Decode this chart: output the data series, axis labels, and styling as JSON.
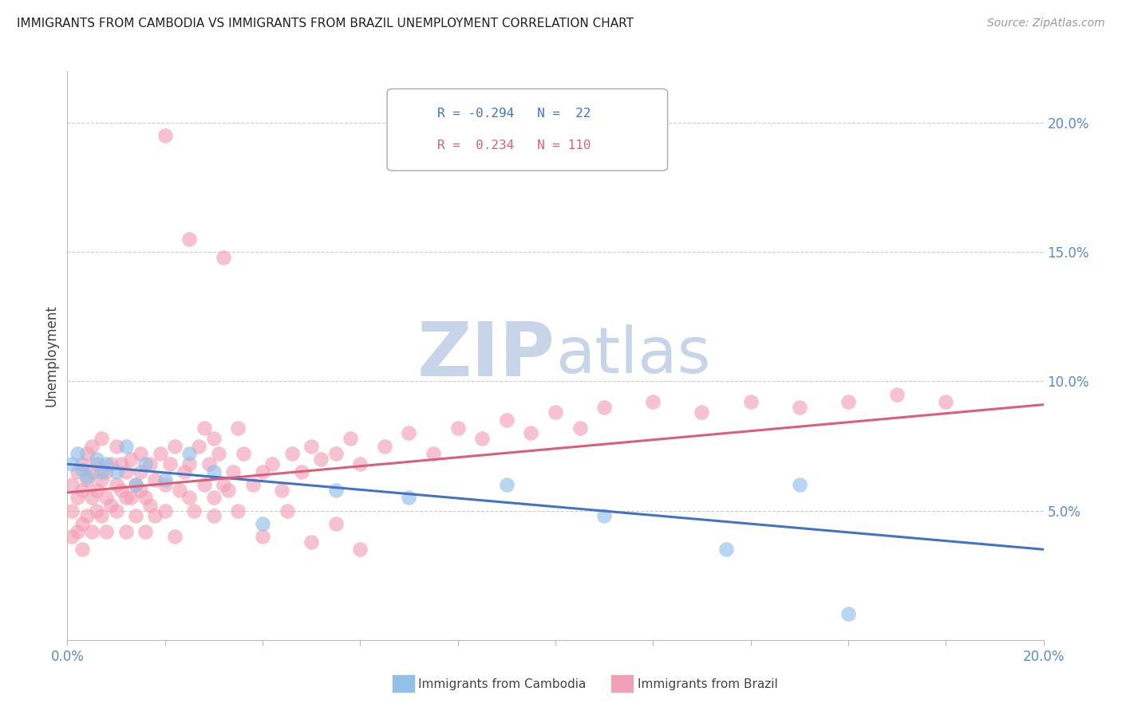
{
  "title": "IMMIGRANTS FROM CAMBODIA VS IMMIGRANTS FROM BRAZIL UNEMPLOYMENT CORRELATION CHART",
  "source": "Source: ZipAtlas.com",
  "ylabel": "Unemployment",
  "r_cambodia": -0.294,
  "n_cambodia": 22,
  "r_brazil": 0.234,
  "n_brazil": 110,
  "color_cambodia": "#92C0E8",
  "color_brazil": "#F2A0B8",
  "line_color_cambodia": "#4472C4",
  "line_color_brazil": "#D9607A",
  "watermark_color": "#C8D5E8",
  "xlim": [
    0.0,
    0.2
  ],
  "ylim": [
    0.0,
    0.22
  ],
  "cam_x": [
    0.001,
    0.002,
    0.003,
    0.004,
    0.006,
    0.007,
    0.008,
    0.01,
    0.012,
    0.014,
    0.016,
    0.02,
    0.025,
    0.03,
    0.04,
    0.055,
    0.07,
    0.09,
    0.11,
    0.135,
    0.15,
    0.16
  ],
  "cam_y": [
    0.068,
    0.072,
    0.066,
    0.063,
    0.07,
    0.065,
    0.068,
    0.065,
    0.075,
    0.06,
    0.068,
    0.062,
    0.072,
    0.065,
    0.045,
    0.058,
    0.055,
    0.06,
    0.048,
    0.035,
    0.06,
    0.01
  ],
  "braz_x": [
    0.001,
    0.001,
    0.001,
    0.002,
    0.002,
    0.002,
    0.003,
    0.003,
    0.003,
    0.003,
    0.004,
    0.004,
    0.004,
    0.005,
    0.005,
    0.005,
    0.005,
    0.006,
    0.006,
    0.006,
    0.007,
    0.007,
    0.007,
    0.008,
    0.008,
    0.008,
    0.009,
    0.009,
    0.01,
    0.01,
    0.01,
    0.011,
    0.011,
    0.012,
    0.012,
    0.012,
    0.013,
    0.013,
    0.014,
    0.014,
    0.015,
    0.015,
    0.015,
    0.016,
    0.016,
    0.017,
    0.017,
    0.018,
    0.018,
    0.019,
    0.02,
    0.02,
    0.021,
    0.022,
    0.022,
    0.023,
    0.024,
    0.025,
    0.025,
    0.026,
    0.027,
    0.028,
    0.029,
    0.03,
    0.03,
    0.031,
    0.032,
    0.033,
    0.034,
    0.035,
    0.036,
    0.038,
    0.04,
    0.042,
    0.044,
    0.046,
    0.048,
    0.05,
    0.052,
    0.055,
    0.058,
    0.06,
    0.065,
    0.07,
    0.075,
    0.08,
    0.085,
    0.09,
    0.095,
    0.1,
    0.105,
    0.11,
    0.12,
    0.13,
    0.14,
    0.15,
    0.16,
    0.17,
    0.18,
    0.02,
    0.025,
    0.028,
    0.03,
    0.032,
    0.035,
    0.04,
    0.045,
    0.05,
    0.055,
    0.06
  ],
  "braz_y": [
    0.05,
    0.06,
    0.04,
    0.055,
    0.065,
    0.042,
    0.058,
    0.068,
    0.045,
    0.035,
    0.062,
    0.048,
    0.072,
    0.055,
    0.065,
    0.042,
    0.075,
    0.058,
    0.068,
    0.05,
    0.062,
    0.048,
    0.078,
    0.055,
    0.065,
    0.042,
    0.068,
    0.052,
    0.06,
    0.05,
    0.075,
    0.058,
    0.068,
    0.055,
    0.065,
    0.042,
    0.07,
    0.055,
    0.06,
    0.048,
    0.072,
    0.058,
    0.065,
    0.055,
    0.042,
    0.068,
    0.052,
    0.062,
    0.048,
    0.072,
    0.06,
    0.05,
    0.068,
    0.04,
    0.075,
    0.058,
    0.065,
    0.055,
    0.068,
    0.05,
    0.075,
    0.06,
    0.068,
    0.055,
    0.048,
    0.072,
    0.06,
    0.058,
    0.065,
    0.05,
    0.072,
    0.06,
    0.065,
    0.068,
    0.058,
    0.072,
    0.065,
    0.075,
    0.07,
    0.072,
    0.078,
    0.068,
    0.075,
    0.08,
    0.072,
    0.082,
    0.078,
    0.085,
    0.08,
    0.088,
    0.082,
    0.09,
    0.092,
    0.088,
    0.092,
    0.09,
    0.092,
    0.095,
    0.092,
    0.195,
    0.155,
    0.082,
    0.078,
    0.148,
    0.082,
    0.04,
    0.05,
    0.038,
    0.045,
    0.035
  ]
}
